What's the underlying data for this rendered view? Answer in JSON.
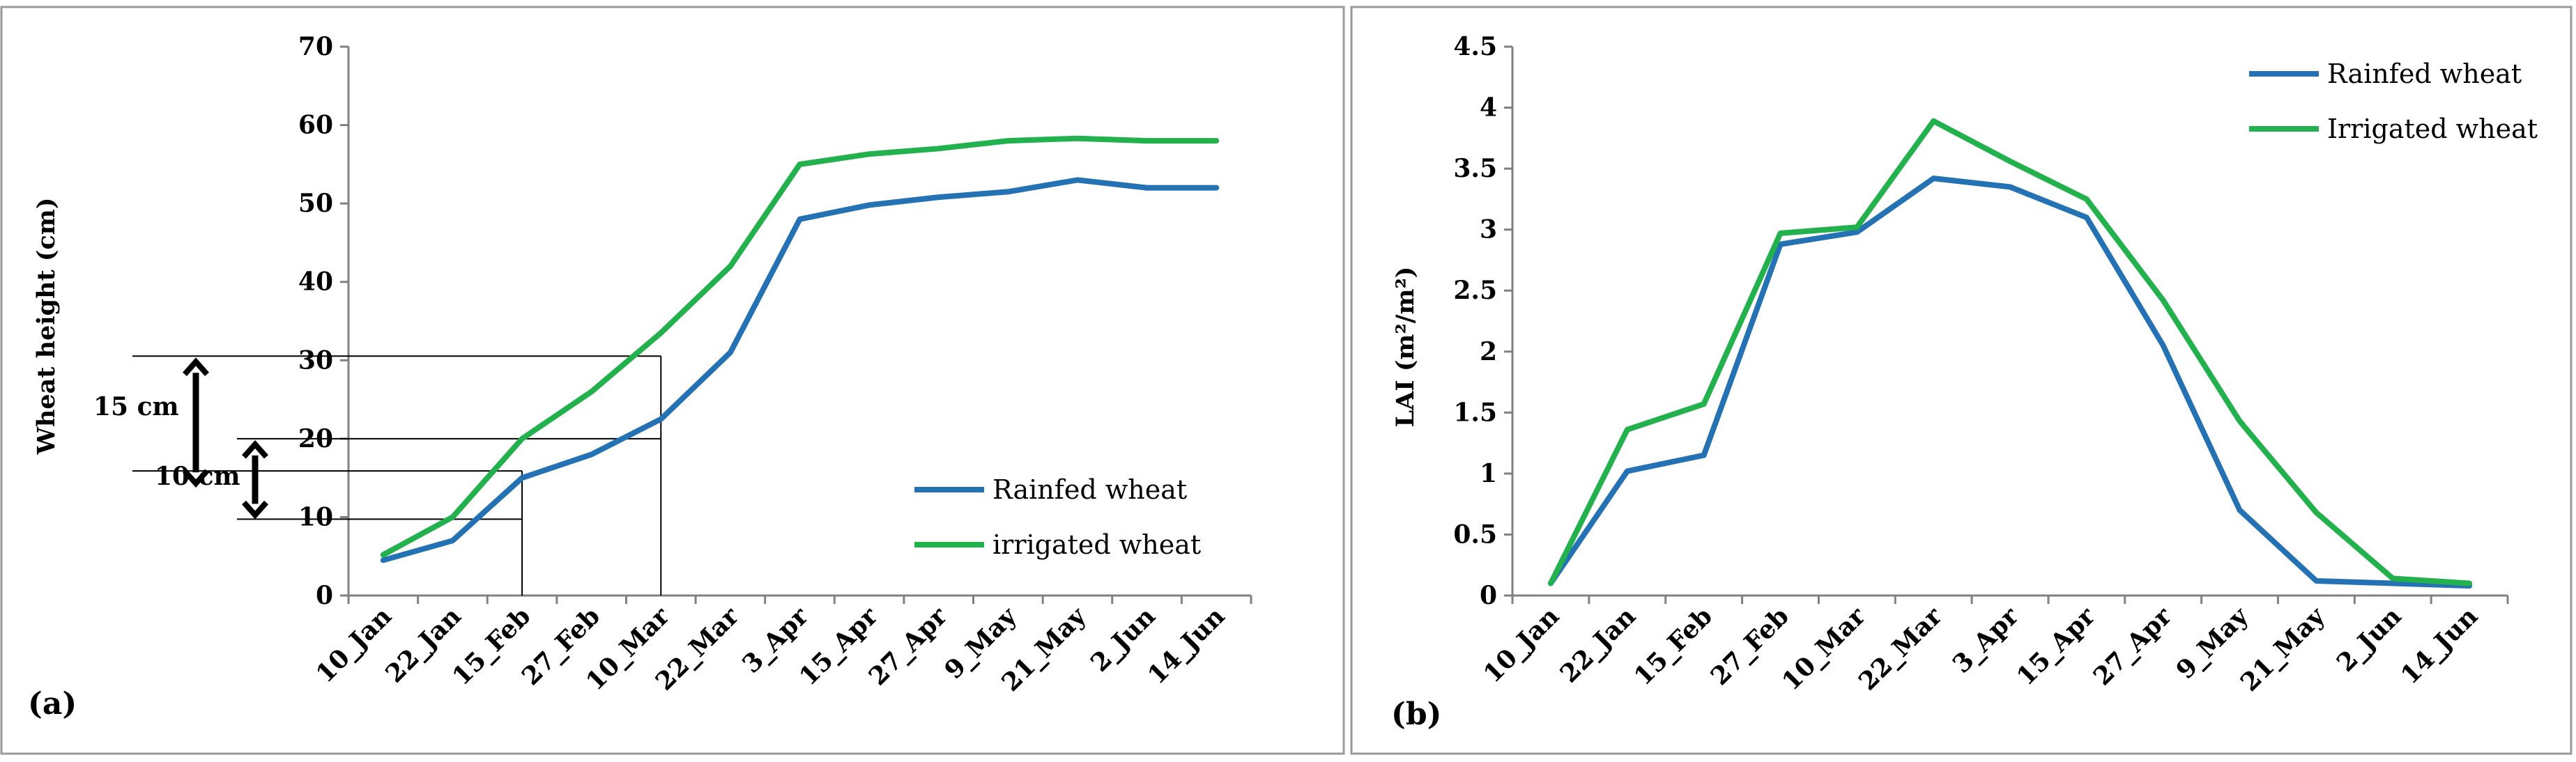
{
  "chart_data": [
    {
      "panel": "(a)",
      "type": "line",
      "ylabel": "Wheat height (cm)",
      "xlabel": "",
      "categories": [
        "10_Jan",
        "22_Jan",
        "15_Feb",
        "27_Feb",
        "10_Mar",
        "22_Mar",
        "3_Apr",
        "15_Apr",
        "27_Apr",
        "9_May",
        "21_May",
        "2_Jun",
        "14_Jun"
      ],
      "ylim": [
        0,
        70
      ],
      "yticks": [
        "0",
        "10",
        "20",
        "30",
        "40",
        "50",
        "60",
        "70"
      ],
      "legend_position": "right-middle",
      "series": [
        {
          "name": "Rainfed wheat",
          "color": "#2472b4",
          "values": [
            4.5,
            7,
            15,
            18,
            22.5,
            31,
            48,
            49.8,
            50.8,
            51.5,
            53,
            52,
            52
          ]
        },
        {
          "name": "irrigated wheat",
          "color": "#23b14d",
          "values": [
            5.2,
            10,
            20,
            26,
            33.5,
            42,
            55,
            56.3,
            57,
            58,
            58.3,
            58,
            58
          ]
        }
      ],
      "annotations": [
        {
          "label": "15 cm",
          "from": 15,
          "to": 30
        },
        {
          "label": "10 cm",
          "from": 10,
          "to": 20
        }
      ]
    },
    {
      "panel": "(b)",
      "type": "line",
      "ylabel": "LAI (m²/m²)",
      "xlabel": "",
      "categories": [
        "10_Jan",
        "22_Jan",
        "15_Feb",
        "27_Feb",
        "10_Mar",
        "22_Mar",
        "3_Apr",
        "15_Apr",
        "27_Apr",
        "9_May",
        "21_May",
        "2_Jun",
        "14_Jun"
      ],
      "ylim": [
        0,
        4.5
      ],
      "yticks": [
        "0",
        "0.5",
        "1",
        "1.5",
        "2",
        "2.5",
        "3",
        "3.5",
        "4",
        "4.5"
      ],
      "legend_position": "top-right",
      "series": [
        {
          "name": "Rainfed wheat",
          "color": "#2472b4",
          "values": [
            0.1,
            1.02,
            1.15,
            2.88,
            2.98,
            3.42,
            3.35,
            3.1,
            2.05,
            0.7,
            0.12,
            0.1,
            0.08
          ]
        },
        {
          "name": "Irrigated wheat",
          "color": "#23b14d",
          "values": [
            0.1,
            1.36,
            1.57,
            2.97,
            3.02,
            3.89,
            3.56,
            3.25,
            2.42,
            1.43,
            0.68,
            0.14,
            0.1
          ]
        }
      ]
    }
  ]
}
